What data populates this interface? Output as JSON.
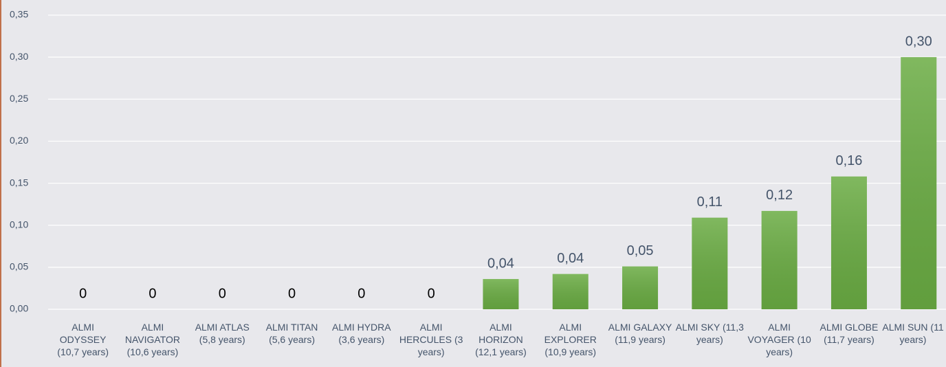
{
  "chart_data": {
    "type": "bar",
    "categories": [
      "ALMI ODYSSEY (10,7 years)",
      "ALMI NAVIGATOR (10,6 years)",
      "ALMI ATLAS (5,8 years)",
      "ALMI TITAN (5,6 years)",
      "ALMI HYDRA (3,6 years)",
      "ALMI HERCULES (3 years)",
      "ALMI HORIZON (12,1 years)",
      "ALMI EXPLORER (10,9 years)",
      "ALMI GALAXY (11,9 years)",
      "ALMI SKY (11,3 years)",
      "ALMI VOYAGER (10 years)",
      "ALMI GLOBE (11,7 years)",
      "ALMI SUN (11 years)"
    ],
    "values": [
      0,
      0,
      0,
      0,
      0,
      0,
      0.036,
      0.042,
      0.051,
      0.109,
      0.117,
      0.158,
      0.3
    ],
    "value_labels": [
      "0",
      "0",
      "0",
      "0",
      "0",
      "0",
      "0,04",
      "0,04",
      "0,05",
      "0,11",
      "0,12",
      "0,16",
      "0,30"
    ],
    "color": "#6aac43",
    "ylim": [
      0,
      0.35
    ],
    "yticks": [
      {
        "value": 0,
        "label": "0,00"
      },
      {
        "value": 0.05,
        "label": "0,05"
      },
      {
        "value": 0.1,
        "label": "0,10"
      },
      {
        "value": 0.15,
        "label": "0,15"
      },
      {
        "value": 0.2,
        "label": "0,20"
      },
      {
        "value": 0.25,
        "label": "0,25"
      },
      {
        "value": 0.3,
        "label": "0,30"
      },
      {
        "value": 0.35,
        "label": "0,35"
      }
    ],
    "grid": true
  }
}
